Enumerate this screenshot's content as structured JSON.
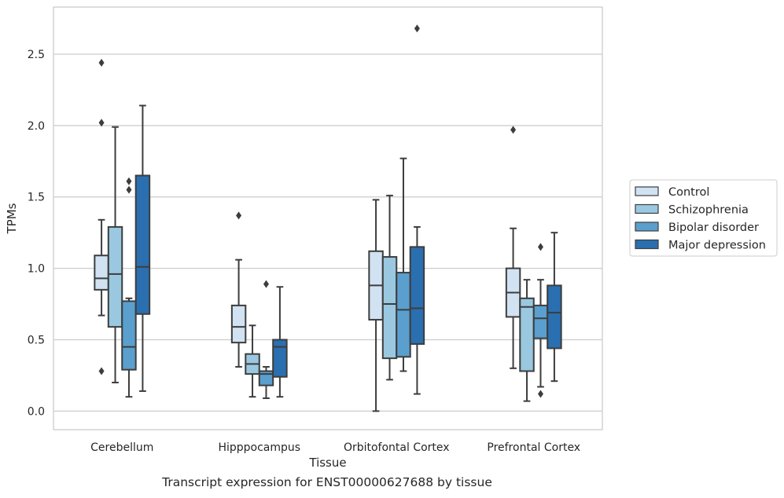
{
  "chart_data": {
    "type": "box",
    "title": "",
    "xlabel": "Tissue",
    "ylabel": "TPMs",
    "ylim": [
      -0.13,
      2.83
    ],
    "yticks": [
      0.0,
      0.5,
      1.0,
      1.5,
      2.0,
      2.5
    ],
    "ytick_labels": [
      "0.0",
      "0.5",
      "1.0",
      "1.5",
      "2.0",
      "2.5"
    ],
    "grid": "horizontal",
    "legend_position": "right",
    "categories": [
      "Cerebellum",
      "Hipppocampus",
      "Orbitofontal Cortex",
      "Prefrontal Cortex"
    ],
    "series": [
      {
        "name": "Control",
        "color": "#d1e2f2",
        "boxes": [
          {
            "whisker_low": 0.67,
            "q1": 0.85,
            "median": 0.93,
            "q3": 1.09,
            "whisker_high": 1.34,
            "outliers": [
              2.44,
              2.02,
              0.28
            ]
          },
          {
            "whisker_low": 0.31,
            "q1": 0.48,
            "median": 0.59,
            "q3": 0.74,
            "whisker_high": 1.06,
            "outliers": [
              1.37
            ]
          },
          {
            "whisker_low": 0.0,
            "q1": 0.64,
            "median": 0.88,
            "q3": 1.12,
            "whisker_high": 1.48,
            "outliers": []
          },
          {
            "whisker_low": 0.3,
            "q1": 0.66,
            "median": 0.83,
            "q3": 1.0,
            "whisker_high": 1.28,
            "outliers": [
              1.97
            ]
          }
        ]
      },
      {
        "name": "Schizophrenia",
        "color": "#9ac8e0",
        "boxes": [
          {
            "whisker_low": 0.2,
            "q1": 0.59,
            "median": 0.96,
            "q3": 1.29,
            "whisker_high": 1.99,
            "outliers": []
          },
          {
            "whisker_low": 0.1,
            "q1": 0.26,
            "median": 0.33,
            "q3": 0.4,
            "whisker_high": 0.6,
            "outliers": []
          },
          {
            "whisker_low": 0.22,
            "q1": 0.37,
            "median": 0.75,
            "q3": 1.08,
            "whisker_high": 1.51,
            "outliers": []
          },
          {
            "whisker_low": 0.07,
            "q1": 0.28,
            "median": 0.73,
            "q3": 0.79,
            "whisker_high": 0.92,
            "outliers": []
          }
        ]
      },
      {
        "name": "Bipolar disorder",
        "color": "#5a9fce",
        "boxes": [
          {
            "whisker_low": 0.1,
            "q1": 0.29,
            "median": 0.45,
            "q3": 0.77,
            "whisker_high": 0.79,
            "outliers": [
              1.61,
              1.55
            ]
          },
          {
            "whisker_low": 0.09,
            "q1": 0.18,
            "median": 0.26,
            "q3": 0.28,
            "whisker_high": 0.31,
            "outliers": [
              0.89
            ]
          },
          {
            "whisker_low": 0.28,
            "q1": 0.38,
            "median": 0.71,
            "q3": 0.97,
            "whisker_high": 1.77,
            "outliers": []
          },
          {
            "whisker_low": 0.17,
            "q1": 0.51,
            "median": 0.65,
            "q3": 0.74,
            "whisker_high": 0.92,
            "outliers": [
              1.15,
              0.12
            ]
          }
        ]
      },
      {
        "name": "Major depression",
        "color": "#2a6fb0",
        "boxes": [
          {
            "whisker_low": 0.14,
            "q1": 0.68,
            "median": 1.01,
            "q3": 1.65,
            "whisker_high": 2.14,
            "outliers": []
          },
          {
            "whisker_low": 0.1,
            "q1": 0.24,
            "median": 0.45,
            "q3": 0.5,
            "whisker_high": 0.87,
            "outliers": []
          },
          {
            "whisker_low": 0.12,
            "q1": 0.47,
            "median": 0.72,
            "q3": 1.15,
            "whisker_high": 1.29,
            "outliers": [
              2.68
            ]
          },
          {
            "whisker_low": 0.21,
            "q1": 0.44,
            "median": 0.69,
            "q3": 0.88,
            "whisker_high": 1.25,
            "outliers": []
          }
        ]
      }
    ],
    "caption": "Transcript expression for ENST00000627688 by tissue"
  }
}
